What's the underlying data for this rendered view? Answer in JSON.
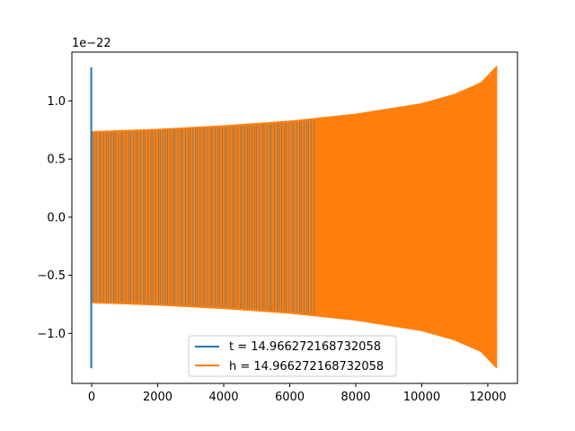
{
  "chart_data": {
    "type": "line",
    "title": "",
    "xlabel": "",
    "ylabel": "",
    "y_offset_text": "1e−22",
    "y_scale_exponent": -22,
    "xlim": [
      -600,
      12900
    ],
    "ylim": [
      -1.43,
      1.42
    ],
    "x_ticks": [
      0,
      2000,
      4000,
      6000,
      8000,
      10000,
      12000
    ],
    "x_tick_labels": [
      "0",
      "2000",
      "4000",
      "6000",
      "8000",
      "10000",
      "12000"
    ],
    "y_ticks": [
      -1.0,
      -0.5,
      0.0,
      0.5,
      1.0
    ],
    "y_tick_labels": [
      "−1.0",
      "−0.5",
      "0.0",
      "0.5",
      "1.0"
    ],
    "grid": false,
    "legend_position": "lower center",
    "series": [
      {
        "name": "t = 14.966272168732058",
        "color": "#1f77b4",
        "description_points": [
          {
            "x": 0,
            "y": 1.29
          },
          {
            "x": 0,
            "y": -1.3
          }
        ]
      },
      {
        "name": "h = 14.966272168732058",
        "color": "#ff7f0e",
        "envelope": {
          "x": [
            0,
            2000,
            4000,
            6000,
            8000,
            10000,
            11000,
            11800,
            12270
          ],
          "upper": [
            0.74,
            0.76,
            0.79,
            0.83,
            0.89,
            0.98,
            1.06,
            1.16,
            1.3
          ],
          "lower": [
            -0.74,
            -0.76,
            -0.79,
            -0.83,
            -0.89,
            -0.98,
            -1.06,
            -1.16,
            -1.3
          ]
        },
        "x_end": 12270
      }
    ]
  }
}
